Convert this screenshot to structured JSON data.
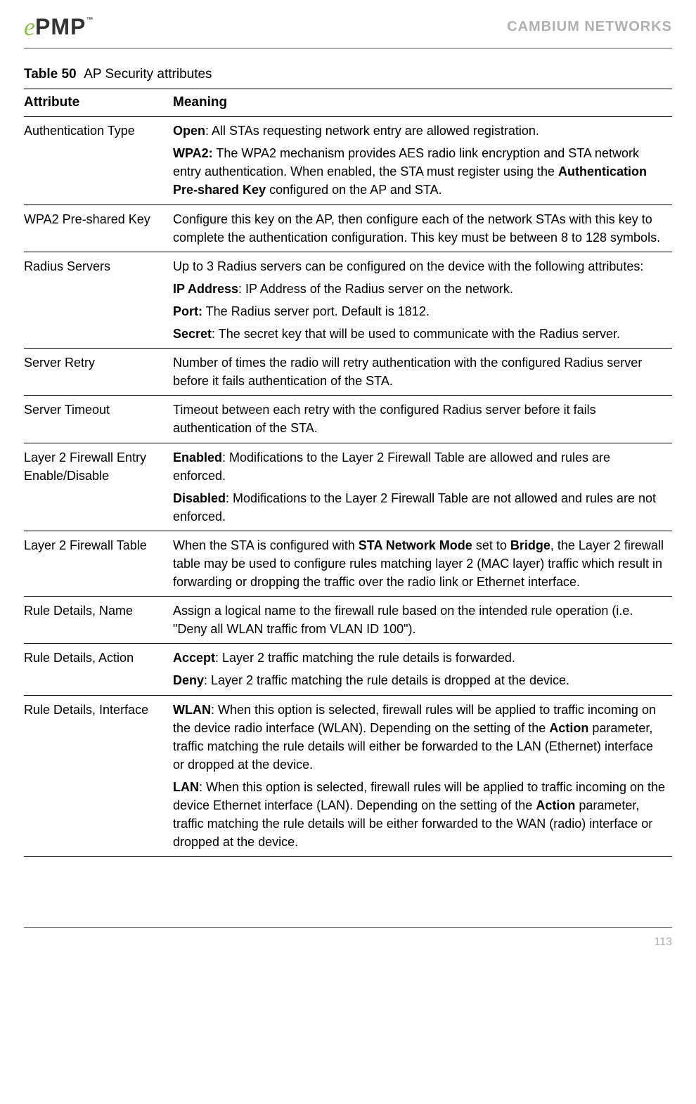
{
  "header": {
    "logo_e": "e",
    "logo_pmp": "PMP",
    "logo_tm": "™",
    "company": "CAMBIUM NETWORKS"
  },
  "caption": {
    "label": "Table 50",
    "title": "AP Security attributes"
  },
  "table": {
    "col1": "Attribute",
    "col2": "Meaning"
  },
  "rows": {
    "authType": {
      "attr": "Authentication Type",
      "open_b": "Open",
      "open_txt": ":  All STAs requesting network entry are allowed registration.",
      "wpa2_b": "WPA2:",
      "wpa2_txt1": "  The WPA2 mechanism provides AES radio link encryption and STA network entry authentication.  When enabled, the STA must register using the ",
      "wpa2_key_b": "Authentication Pre-shared Key",
      "wpa2_txt2": " configured on the AP and STA."
    },
    "psk": {
      "attr": "WPA2 Pre-shared Key",
      "txt": "Configure this key on the AP, then configure each of the network STAs with this key to complete the authentication configuration. This key must be between 8 to 128 symbols."
    },
    "radius": {
      "attr": "Radius Servers",
      "intro": "Up to 3 Radius servers can be configured on the device with the following attributes:",
      "ip_b": "IP Address",
      "ip_txt": ":  IP Address of the Radius server on the network.",
      "port_b": "Port:",
      "port_txt": " The Radius server port. Default is 1812.",
      "secret_b": "Secret",
      "secret_txt": ": The secret key that will be used to communicate with the Radius server."
    },
    "sretry": {
      "attr": "Server Retry",
      "txt": "Number of times the radio will retry authentication with the configured Radius server before it fails authentication of the STA."
    },
    "stimeout": {
      "attr": "Server Timeout",
      "txt": "Timeout between each retry with the configured Radius server before it fails authentication of the STA."
    },
    "l2enable": {
      "attr": "Layer 2 Firewall Entry Enable/Disable",
      "en_b": "Enabled",
      "en_txt": ":  Modifications to the Layer 2 Firewall Table are allowed and rules are enforced.",
      "dis_b": "Disabled",
      "dis_txt": ":  Modifications to the Layer 2 Firewall Table are not allowed and rules are not enforced."
    },
    "l2table": {
      "attr": "Layer 2 Firewall Table",
      "t1": "When the STA is configured with ",
      "snm_b": "STA Network Mode",
      "t2": " set to ",
      "bridge_b": "Bridge",
      "t3": ", the Layer 2 firewall table may be used to configure rules matching layer 2 (MAC layer) traffic which result in forwarding or dropping the traffic over the radio link or Ethernet interface."
    },
    "rname": {
      "attr": "Rule Details, Name",
      "txt": "Assign a logical name to the firewall rule based on the intended rule operation (i.e. \"Deny all WLAN traffic from VLAN ID 100\")."
    },
    "raction": {
      "attr": "Rule Details, Action",
      "acc_b": "Accept",
      "acc_txt": ": Layer 2 traffic matching the rule details is forwarded.",
      "deny_b": "Deny",
      "deny_txt": ": Layer 2 traffic matching the rule details is dropped at the device."
    },
    "riface": {
      "attr": "Rule Details, Interface",
      "wlan_b": "WLAN",
      "wlan_t1": ":  When this option is selected, firewall rules will be applied to traffic incoming on the device radio interface (WLAN). Depending on the setting of the ",
      "action_b1": "Action",
      "wlan_t2": " parameter, traffic matching the rule details will either be forwarded to the LAN (Ethernet) interface or dropped at the device.",
      "lan_b": "LAN",
      "lan_t1": ":  When this option is selected, firewall rules will be applied to traffic incoming on the device Ethernet interface (LAN).  Depending on the setting of the ",
      "action_b2": "Action",
      "lan_t2": " parameter, traffic matching the rule details will be either forwarded to the WAN (radio) interface or dropped at the device."
    }
  },
  "footer": {
    "page": "113"
  }
}
